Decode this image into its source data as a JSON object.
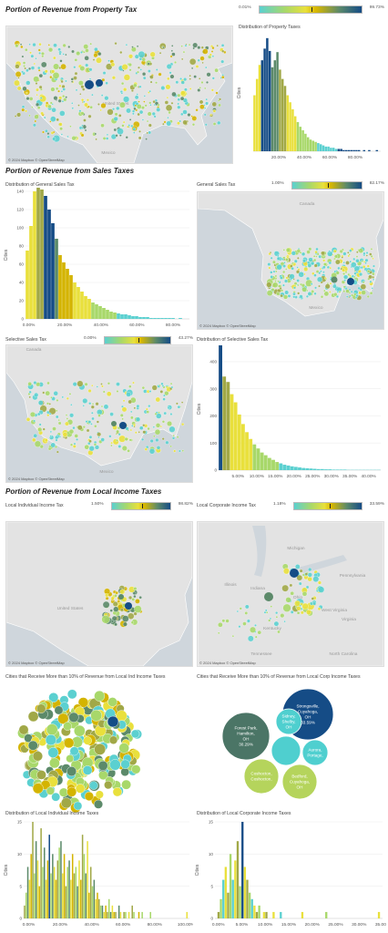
{
  "colors": {
    "teal": "#5bd0d0",
    "lime": "#a8d86a",
    "yellow": "#e9e03c",
    "gold": "#d4b400",
    "olive": "#a1a847",
    "green": "#5c8a6a",
    "navy": "#154c86",
    "map_land": "#e3e3e3",
    "map_water": "#cfd6dc"
  },
  "sections": {
    "property": "Portion of Revenue from Property Tax",
    "sales": "Portion of Revenue from Sales Taxes",
    "income": "Portion of Revenue from Local Income Taxes"
  },
  "map_attribution": "© 2024 Mapbox © OpenStreetMap",
  "legends": {
    "property": {
      "min": "0.01%",
      "max": "99.73%"
    },
    "general_sales": {
      "label": "General Sales Tax",
      "min": "1.00%",
      "max": "82.17%"
    },
    "selective_sales": {
      "label": "Selective Sales Tax",
      "min": "0.00%",
      "max": "43.27%"
    },
    "local_individual": {
      "label": "Local Individual Income Tax",
      "min": "1.50%",
      "max": "98.82%"
    },
    "local_corporate": {
      "label": "Local Corporate Income Tax",
      "min": "1.18%",
      "max": "33.59%"
    }
  },
  "map_labels": {
    "us": "United States",
    "mexico": "Mexico",
    "canada": "Canada",
    "michigan": "Michigan",
    "illinois": "Illinois",
    "indiana": "Indiana",
    "ohio": "Ohio",
    "pennsylvania": "Pennsylvania",
    "west_virginia": "West Virginia",
    "virginia": "Virginia",
    "kentucky": "Kentucky",
    "tennessee": "Tennessee",
    "north_carolina": "North Carolina"
  },
  "chart_data": [
    {
      "id": "prop_hist",
      "type": "bar",
      "title": "Distribution of Property Taxes",
      "ylabel": "Cities",
      "ylim": [
        0,
        100
      ],
      "yticks": [],
      "xticks": [
        "20.00%",
        "40.00%",
        "60.00%",
        "80.00%"
      ],
      "xlim": [
        0,
        100
      ],
      "bin_width": 2,
      "values": [
        48,
        62,
        74,
        78,
        88,
        97,
        86,
        72,
        78,
        85,
        70,
        62,
        56,
        48,
        42,
        36,
        30,
        25,
        21,
        18,
        15,
        12,
        10,
        9,
        8,
        7,
        6,
        5,
        4,
        4,
        3,
        3,
        2,
        2,
        2,
        1,
        1,
        1,
        1,
        1,
        1,
        1,
        0,
        1,
        0,
        1,
        0,
        0,
        1,
        0
      ]
    },
    {
      "id": "gen_hist",
      "type": "bar",
      "title": "Distribution of General Sales Tax",
      "ylabel": "Cities",
      "ylim": [
        0,
        140
      ],
      "yticks": [
        0,
        20,
        40,
        60,
        80,
        100,
        120,
        140
      ],
      "xticks": [
        "0.00%",
        "20.00%",
        "40.00%",
        "60.00%",
        "80.00%"
      ],
      "xlim": [
        0,
        90
      ],
      "bin_width": 2,
      "values": [
        75,
        102,
        140,
        145,
        142,
        135,
        120,
        105,
        88,
        70,
        62,
        55,
        48,
        40,
        35,
        30,
        25,
        22,
        18,
        16,
        14,
        12,
        10,
        8,
        7,
        6,
        5,
        5,
        4,
        3,
        3,
        2,
        2,
        2,
        1,
        1,
        1,
        1,
        1,
        1,
        1,
        0,
        1,
        0,
        0
      ]
    },
    {
      "id": "sel_hist",
      "type": "bar",
      "title": "Distribution of Selective Sales Tax",
      "ylabel": "Cities",
      "ylim": [
        0,
        450
      ],
      "yticks": [
        0,
        100,
        200,
        300,
        400
      ],
      "xticks": [
        "5.00%",
        "10.00%",
        "15.00%",
        "20.00%",
        "25.00%",
        "30.00%",
        "35.00%",
        "40.00%"
      ],
      "xlim": [
        0,
        43
      ],
      "bin_width": 1,
      "values": [
        460,
        345,
        325,
        280,
        250,
        205,
        170,
        140,
        115,
        95,
        80,
        65,
        55,
        45,
        38,
        30,
        25,
        20,
        17,
        14,
        12,
        10,
        8,
        7,
        6,
        5,
        4,
        4,
        3,
        3,
        2,
        2,
        2,
        2,
        1,
        1,
        1,
        1,
        1,
        1,
        1,
        1,
        1
      ]
    },
    {
      "id": "ind_hist",
      "type": "bar",
      "title": "Distribution of Local Individual Income Taxes",
      "ylabel": "Cities",
      "ylim": [
        0,
        15
      ],
      "yticks": [
        0,
        5,
        10,
        15
      ],
      "xticks": [
        "0.00%",
        "20.00%",
        "40.00%",
        "60.00%",
        "80.00%",
        "100.00%"
      ],
      "xlim": [
        0,
        100
      ],
      "bin_width": 1,
      "values": [
        2,
        4,
        8,
        6,
        10,
        15,
        7,
        12,
        9,
        5,
        14,
        8,
        11,
        6,
        9,
        13,
        7,
        10,
        8,
        6,
        9,
        11,
        12,
        7,
        10,
        5,
        8,
        9,
        6,
        10,
        7,
        8,
        5,
        9,
        6,
        13,
        10,
        7,
        12,
        4,
        8,
        5,
        6,
        3,
        4,
        3,
        2,
        2,
        1,
        2,
        1,
        3,
        1,
        2,
        1,
        1,
        0,
        2,
        1,
        0,
        1,
        1,
        0,
        1,
        0,
        2,
        1,
        0,
        0,
        1,
        0,
        1,
        0,
        0,
        0,
        0,
        1,
        0,
        0,
        0,
        0,
        0,
        0,
        0,
        0,
        0,
        0,
        0,
        0,
        0,
        0,
        0,
        0,
        0,
        0,
        0,
        0,
        0,
        1,
        0
      ]
    },
    {
      "id": "corp_hist",
      "type": "bar",
      "title": "Distribution of Local Corporate Income Taxes",
      "ylabel": "Cities",
      "ylim": [
        0,
        15
      ],
      "yticks": [
        0,
        5,
        10,
        15
      ],
      "xticks": [
        "0.00%",
        "5.00%",
        "10.00%",
        "15.00%",
        "20.00%",
        "25.00%",
        "30.00%",
        "35.00%"
      ],
      "xlim": [
        0,
        35
      ],
      "bin_width": 0.5,
      "values": [
        0,
        1,
        3,
        6,
        8,
        4,
        10,
        6,
        9,
        12,
        5,
        15,
        8,
        6,
        4,
        3,
        2,
        1,
        2,
        0,
        1,
        1,
        0,
        0,
        1,
        0,
        0,
        1,
        0,
        0,
        0,
        0,
        0,
        0,
        0,
        0,
        1,
        0,
        0,
        0,
        0,
        0,
        0,
        0,
        0,
        0,
        1,
        0,
        0,
        0,
        0,
        0,
        0,
        0,
        0,
        0,
        0,
        0,
        0,
        0,
        0,
        0,
        0,
        0,
        0,
        0,
        0,
        0,
        1,
        0
      ]
    },
    {
      "id": "ind_bubbles",
      "type": "scatter",
      "title": "Cities that Receive More than 10% of Revenue from Local Ind Income Taxes"
    },
    {
      "id": "corp_bubbles",
      "type": "scatter",
      "title": "Cities that Receive More than 10% of Revenue from Local Corp Income Taxes",
      "bubbles": [
        {
          "label": "Strongsville, Cuyahoga, OH",
          "value": "33.59%",
          "color": "#154c86",
          "r": 28,
          "cx": 338,
          "cy": 784
        },
        {
          "label": "Forest Park, Hamilton, OH",
          "value": "30.29%",
          "color": "#4b7566",
          "r": 26,
          "cx": 270,
          "cy": 808
        },
        {
          "label": "Sidney, Shelby, OH",
          "value": "",
          "color": "#4fcfcf",
          "r": 14,
          "cx": 317,
          "cy": 792
        },
        {
          "label": "Aurora, Portage,",
          "value": "",
          "color": "#4fcfcf",
          "r": 14,
          "cx": 346,
          "cy": 826
        },
        {
          "label": "",
          "value": "",
          "color": "#4fcfcf",
          "r": 16,
          "cx": 314,
          "cy": 824
        },
        {
          "label": "Coshocton, Coshocton,",
          "value": "",
          "color": "#b5d45c",
          "r": 19,
          "cx": 287,
          "cy": 852
        },
        {
          "label": "Bedford, Cuyahoga, OH",
          "value": "",
          "color": "#b5d45c",
          "r": 19,
          "cx": 329,
          "cy": 858
        }
      ]
    }
  ]
}
